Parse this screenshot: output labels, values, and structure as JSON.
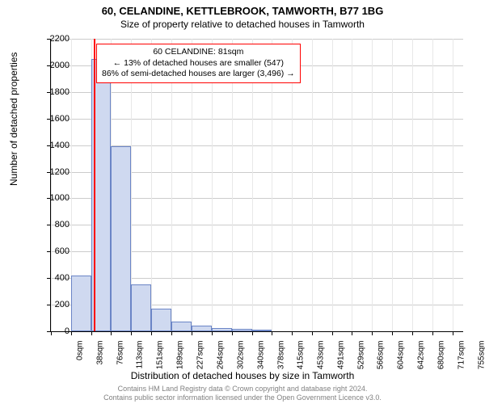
{
  "title_main": "60, CELANDINE, KETTLEBROOK, TAMWORTH, B77 1BG",
  "title_sub": "Size of property relative to detached houses in Tamworth",
  "y_axis_label": "Number of detached properties",
  "x_axis_label": "Distribution of detached houses by size in Tamworth",
  "footer_line1": "Contains HM Land Registry data © Crown copyright and database right 2024.",
  "footer_line2": "Contains public sector information licensed under the Open Government Licence v3.0.",
  "annotation": {
    "line1": "60 CELANDINE: 81sqm",
    "line2": "← 13% of detached houses are smaller (547)",
    "line3": "86% of semi-detached houses are larger (3,496) →"
  },
  "chart": {
    "type": "histogram",
    "ylim": [
      0,
      2200
    ],
    "ytick_step": 200,
    "bar_fill": "#cfd9f0",
    "bar_border": "#6b85c6",
    "grid_color": "#cccccc",
    "ref_line_color": "#ff0000",
    "ref_line_x": 81,
    "xlim": [
      0,
      775
    ],
    "x_ticks": [
      0,
      38,
      76,
      113,
      151,
      189,
      227,
      264,
      302,
      340,
      378,
      415,
      453,
      491,
      529,
      566,
      604,
      642,
      680,
      717,
      755
    ],
    "x_tick_unit": "sqm",
    "bars": [
      {
        "x0": 38,
        "x1": 76,
        "value": 420
      },
      {
        "x0": 76,
        "x1": 113,
        "value": 2050
      },
      {
        "x0": 113,
        "x1": 151,
        "value": 1390
      },
      {
        "x0": 151,
        "x1": 189,
        "value": 350
      },
      {
        "x0": 189,
        "x1": 227,
        "value": 170
      },
      {
        "x0": 227,
        "x1": 264,
        "value": 75
      },
      {
        "x0": 264,
        "x1": 302,
        "value": 45
      },
      {
        "x0": 302,
        "x1": 340,
        "value": 25
      },
      {
        "x0": 340,
        "x1": 378,
        "value": 18
      },
      {
        "x0": 378,
        "x1": 415,
        "value": 10
      }
    ]
  }
}
